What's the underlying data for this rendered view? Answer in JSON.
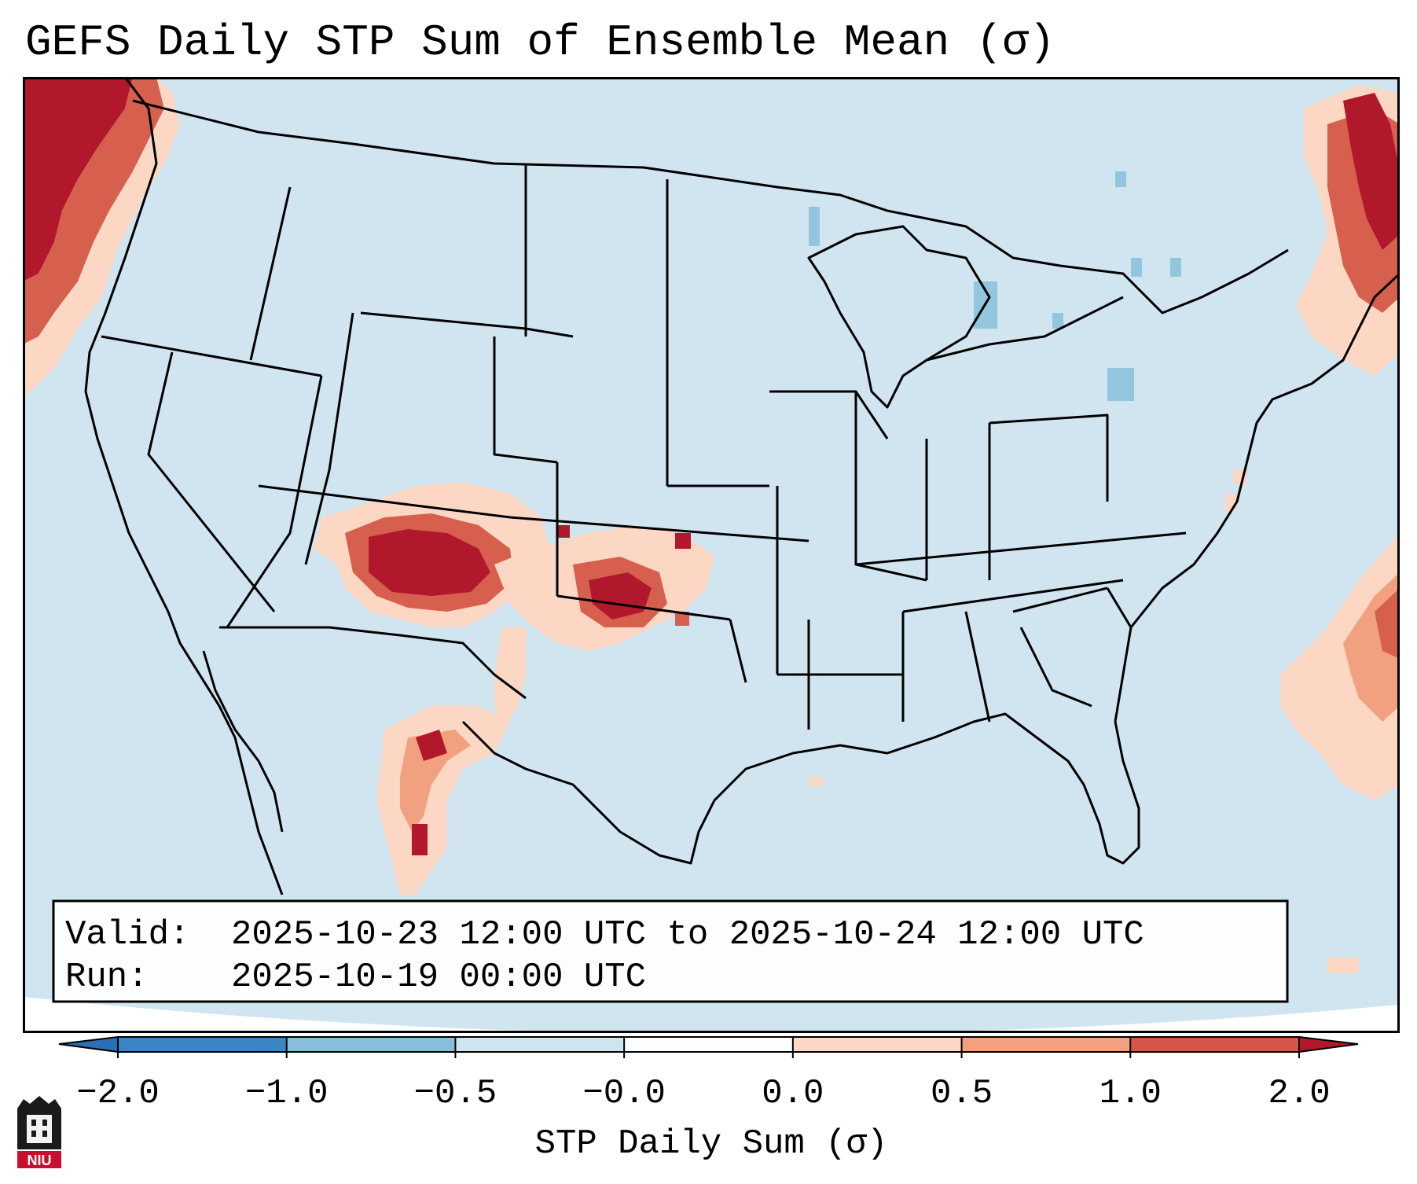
{
  "title": "GEFS Daily STP Sum of Ensemble Mean (σ)",
  "info_box": {
    "valid_label": "Valid:",
    "valid_value": "2025-10-23 12:00 UTC to 2025-10-24 12:00 UTC",
    "run_label": "Run:",
    "run_value": "2025-10-19 00:00 UTC"
  },
  "colorbar": {
    "label": "STP Daily Sum (σ)",
    "ticks": [
      "−2.0",
      "−1.0",
      "−0.5",
      "−0.0",
      "0.0",
      "0.5",
      "1.0",
      "2.0"
    ],
    "bin_colors": [
      "#3a85c2",
      "#88bddc",
      "#cfe4f0",
      "#fbfdfe",
      "#fcd7c4",
      "#f2a180",
      "#d4574a"
    ],
    "under_color": "#2b6fb4",
    "over_color": "#b2182b"
  },
  "map": {
    "background_color": "#d1e5f0",
    "border_color": "#000000"
  },
  "logo": {
    "text": "NIU",
    "icon": "university-tower-icon"
  }
}
